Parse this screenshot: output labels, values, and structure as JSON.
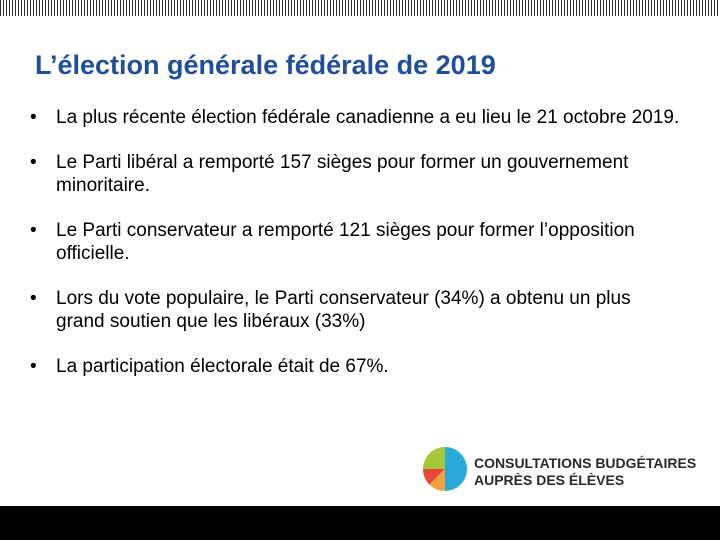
{
  "slide": {
    "title": "L’élection générale fédérale de 2019",
    "bullets": [
      "La plus récente élection fédérale canadienne a eu lieu le 21 octobre 2019.",
      "Le Parti libéral a remporté 157 sièges pour former un gouvernement minoritaire.",
      "Le Parti conservateur a remporté 121 sièges pour former l’opposition officielle.",
      "Lors du vote populaire, le Parti conservateur (34%) a obtenu un plus grand soutien que les libéraux (33%)",
      "La participation électorale était de 67%."
    ],
    "bullet_symbol": "•"
  },
  "logo": {
    "line1": "CONSULTATIONS BUDGÉTAIRES",
    "line2": "AUPRÈS DES ÉLÈVES",
    "icon": "pie-chart-logo",
    "colors": {
      "blue": "#29a9d8",
      "green": "#a6c837",
      "red": "#e8473a",
      "orange": "#f2a23a",
      "text": "#2a2a2a"
    }
  },
  "colors": {
    "title": "#1f4e9a",
    "bottom_bar": "#000000",
    "top_stripe": "#2b2b2b"
  }
}
